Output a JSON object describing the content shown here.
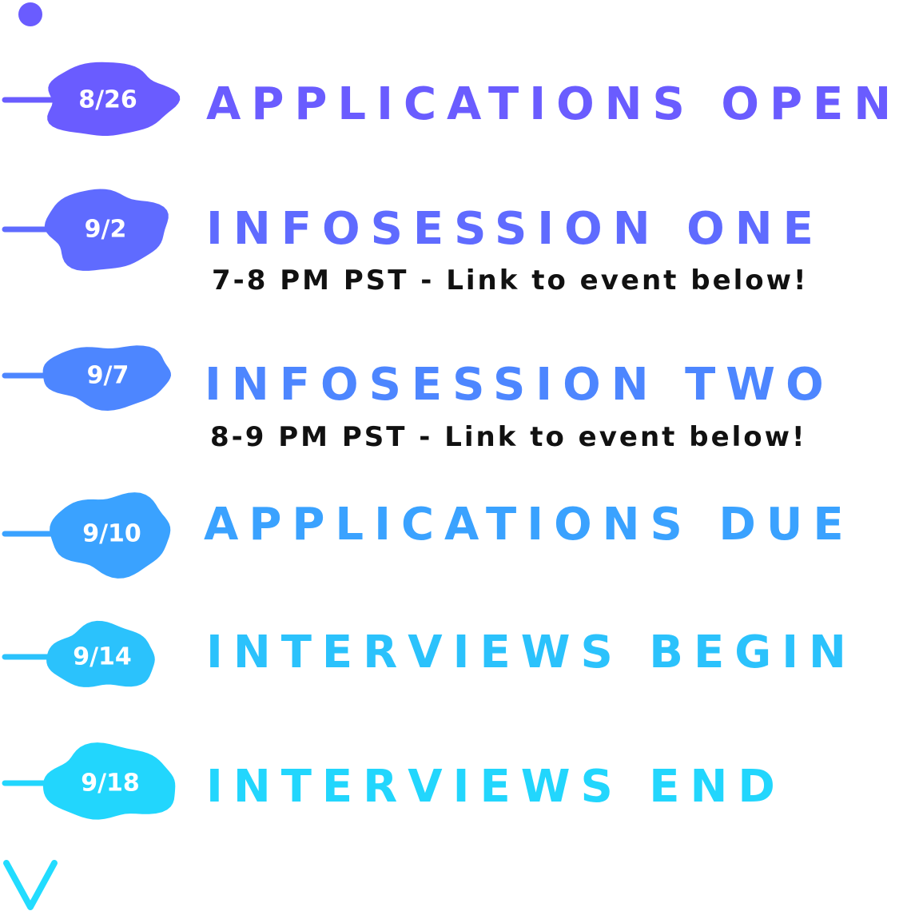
{
  "colors": {
    "top": "#6a5cff",
    "bottom": "#22dcff",
    "subtitle": "#111111"
  },
  "events": [
    {
      "date": "8/26",
      "title": "APPLICATIONS OPEN",
      "subtitle": ""
    },
    {
      "date": "9/2",
      "title": "INFOSESSION ONE",
      "subtitle": "7-8 PM PST - Link to event below!"
    },
    {
      "date": "9/7",
      "title": "INFOSESSION TWO",
      "subtitle": "8-9 PM PST - Link to event below!"
    },
    {
      "date": "9/10",
      "title": "APPLICATIONS DUE",
      "subtitle": ""
    },
    {
      "date": "9/14",
      "title": "INTERVIEWS BEGIN",
      "subtitle": ""
    },
    {
      "date": "9/18",
      "title": "INTERVIEWS END",
      "subtitle": ""
    }
  ]
}
